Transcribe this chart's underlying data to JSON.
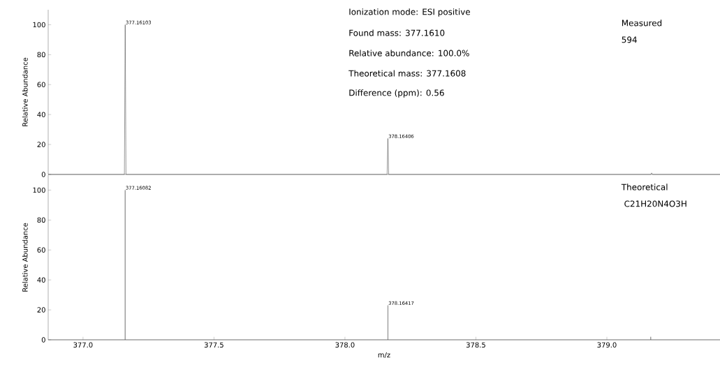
{
  "chart_data": [
    {
      "type": "line",
      "ylabel": "Relative Abundance",
      "xlim": [
        376.867,
        379.432
      ],
      "ylim": [
        0,
        110
      ],
      "yticks": [
        0,
        20,
        40,
        60,
        80,
        100
      ],
      "tick_labels": "y",
      "marker": "none",
      "line_style": "solid",
      "series": [
        {
          "color": "#333333",
          "x": [
            376.867,
            377.158,
            377.161,
            377.164,
            378.161,
            378.164,
            378.167,
            379.168,
            379.171,
            379.174,
            379.432
          ],
          "values": [
            0,
            0,
            100,
            0,
            0,
            24,
            0,
            0,
            1,
            0,
            0
          ]
        }
      ],
      "annotations": [
        {
          "text": "377.16103",
          "x": 377.16103,
          "y": 100
        },
        {
          "text": "378.16406",
          "x": 378.16406,
          "y": 24
        },
        "Ionization mode: ESI positive",
        "Found mass: 377.1610",
        "Relative abundance: 100.0%",
        "Theoretical mass: 377.1608",
        "Difference (ppm): 0.56",
        "Measured",
        "594"
      ]
    },
    {
      "type": "line",
      "xlabel": "m/z",
      "ylabel": "Relative Abundance",
      "xlim": [
        376.867,
        379.432
      ],
      "ylim": [
        0,
        110
      ],
      "yticks": [
        0,
        20,
        40,
        60,
        80,
        100
      ],
      "xticks": [
        {
          "value": 377.0,
          "label": "377.0"
        },
        {
          "value": 377.5,
          "label": "377.5"
        },
        {
          "value": 378.0,
          "label": "378.0"
        },
        {
          "value": 378.5,
          "label": "378.5"
        },
        {
          "value": 379.0,
          "label": "379.0"
        }
      ],
      "marker": "none",
      "line_style": "solid",
      "series": [
        {
          "color": "#555555",
          "x": [
            376.867,
            377.16082,
            377.16082,
            377.16082,
            378.16417,
            378.16417,
            378.16417,
            379.1675,
            379.1675,
            379.1675,
            379.432
          ],
          "values": [
            0,
            0,
            100,
            0,
            0,
            23,
            0,
            0,
            2,
            0,
            0
          ]
        }
      ],
      "annotations": [
        {
          "text": "377.16082",
          "x": 377.16082,
          "y": 100
        },
        {
          "text": "378.16417",
          "x": 378.16417,
          "y": 23
        },
        "Theoretical",
        " C21H20N4O3H"
      ]
    }
  ]
}
